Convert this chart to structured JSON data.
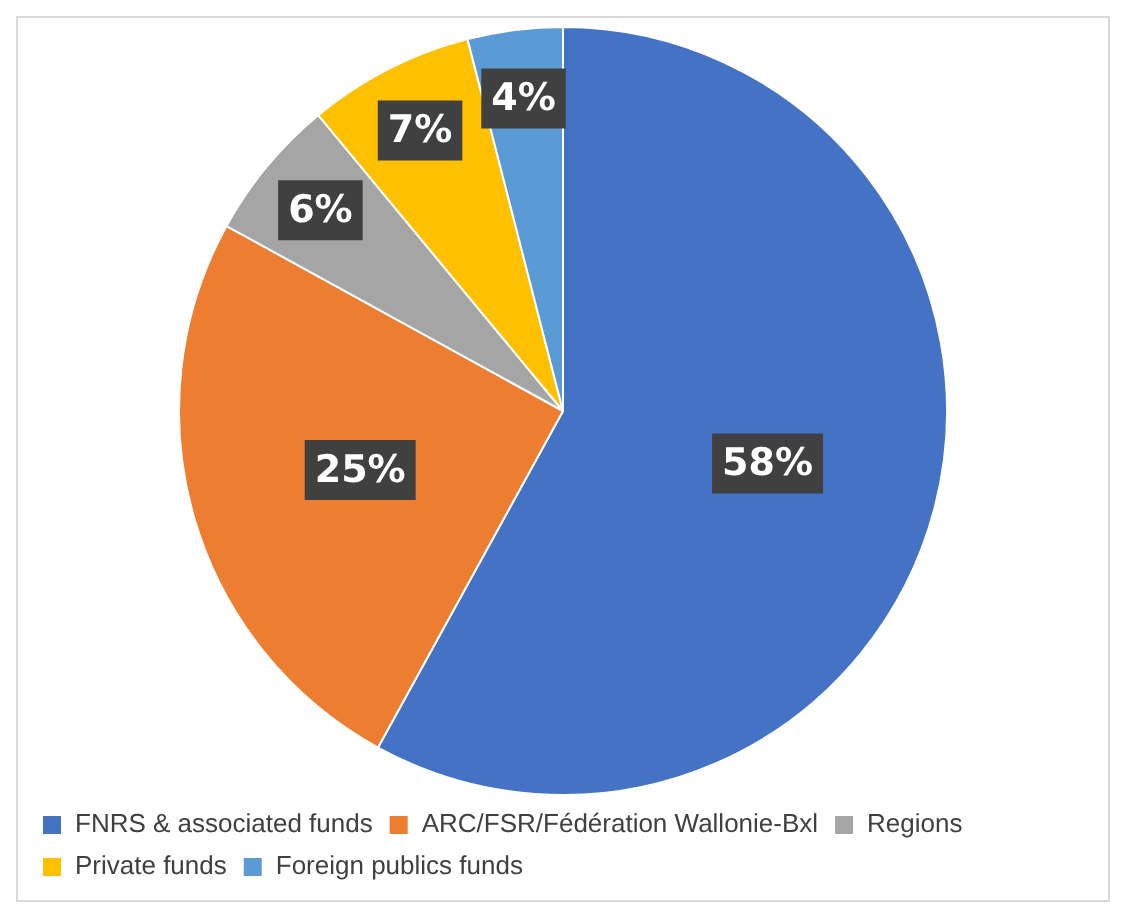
{
  "chart_data": {
    "type": "pie",
    "categories": [
      "FNRS & associated funds",
      "ARC/FSR/Fédération Wallonie-Bxl",
      "Regions",
      "Private funds",
      "Foreign publics funds"
    ],
    "values": [
      58,
      25,
      6,
      7,
      4
    ],
    "colors": [
      "#4472c4",
      "#ed7d31",
      "#a5a5a5",
      "#ffc000",
      "#5b9bd5"
    ],
    "value_labels": [
      "58%",
      "25%",
      "6%",
      "7%",
      "4%"
    ],
    "legend": "bottom"
  }
}
